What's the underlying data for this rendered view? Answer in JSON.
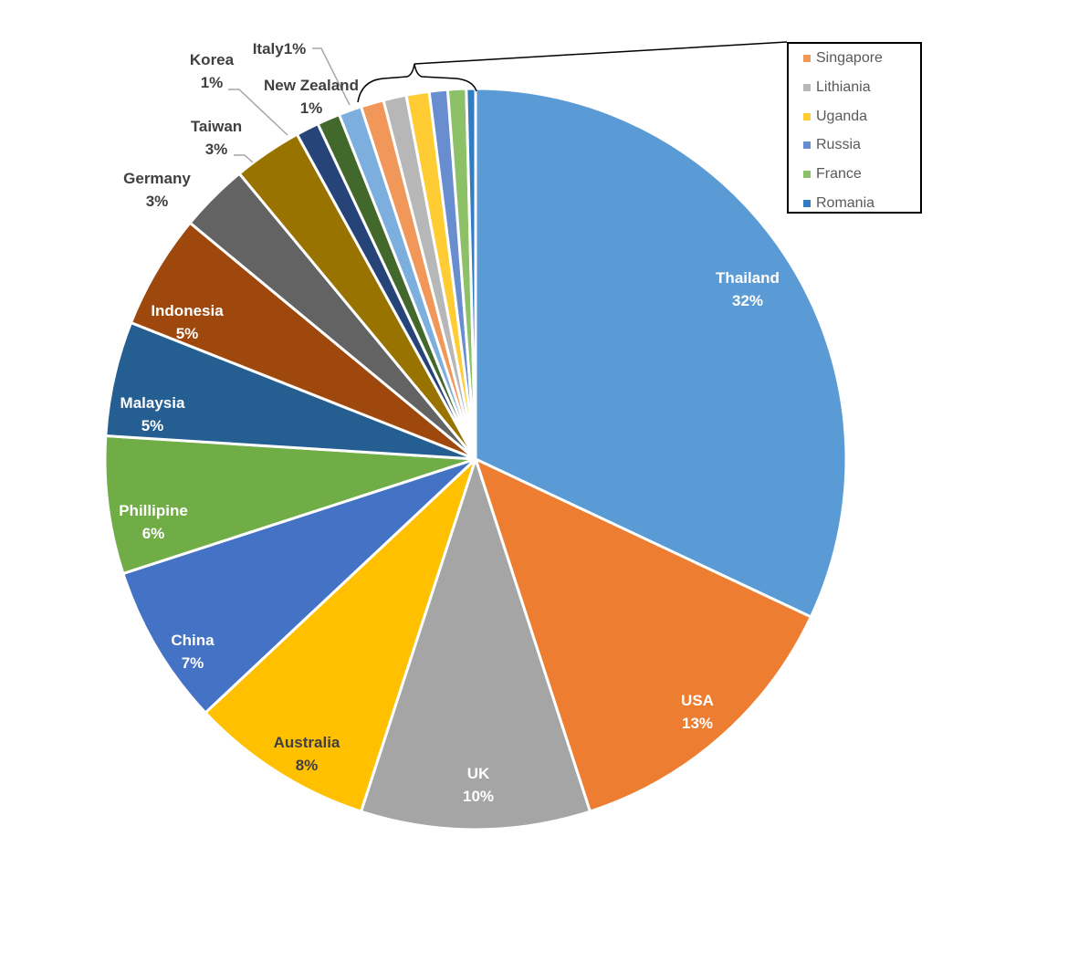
{
  "chart_data": {
    "type": "pie",
    "title": "",
    "slices": [
      {
        "label": "Thailand",
        "value": 32,
        "pct_label": "32%",
        "color": "#5B9BD5",
        "text_color": "#ffffff"
      },
      {
        "label": "USA",
        "value": 13,
        "pct_label": "13%",
        "color": "#ED7D31",
        "text_color": "#ffffff"
      },
      {
        "label": "UK",
        "value": 10,
        "pct_label": "10%",
        "color": "#A5A5A5",
        "text_color": "#ffffff"
      },
      {
        "label": "Australia",
        "value": 8,
        "pct_label": "8%",
        "color": "#FFC000",
        "text_color": "#404040"
      },
      {
        "label": "China",
        "value": 7,
        "pct_label": "7%",
        "color": "#4472C4",
        "text_color": "#ffffff"
      },
      {
        "label": "Phillipine",
        "value": 6,
        "pct_label": "6%",
        "color": "#70AD47",
        "text_color": "#ffffff"
      },
      {
        "label": "Malaysia",
        "value": 5,
        "pct_label": "5%",
        "color": "#255E91",
        "text_color": "#ffffff"
      },
      {
        "label": "Indonesia",
        "value": 5,
        "pct_label": "5%",
        "color": "#9E480E",
        "text_color": "#ffffff"
      },
      {
        "label": "Germany",
        "value": 3,
        "pct_label": "3%",
        "color": "#636363",
        "text_color": "#404040"
      },
      {
        "label": "Taiwan",
        "value": 3,
        "pct_label": "3%",
        "color": "#997300",
        "text_color": "#404040"
      },
      {
        "label": "Korea",
        "value": 1,
        "pct_label": "1%",
        "color": "#264478",
        "text_color": "#404040"
      },
      {
        "label": "New Zealand",
        "value": 1,
        "pct_label": "1%",
        "color": "#43682B",
        "text_color": "#404040"
      },
      {
        "label": "Italy",
        "value": 1,
        "pct_label": "1%",
        "color": "#7CAFDD",
        "text_color": "#404040"
      },
      {
        "label": "Singapore",
        "value": 1,
        "color": "#F1975A"
      },
      {
        "label": "Lithiania",
        "value": 1,
        "color": "#B7B7B7"
      },
      {
        "label": "Uganda",
        "value": 1,
        "color": "#FFCD33"
      },
      {
        "label": "Russia",
        "value": 0.8,
        "color": "#698ED0"
      },
      {
        "label": "France",
        "value": 0.8,
        "color": "#8CC168"
      },
      {
        "label": "Romania",
        "value": 0.4,
        "color": "#327DC2"
      }
    ],
    "legend": {
      "placement": "top-right",
      "items": [
        {
          "label": "Singapore",
          "color": "#F1975A"
        },
        {
          "label": "Lithiania",
          "color": "#B7B7B7"
        },
        {
          "label": "Uganda",
          "color": "#FFCD33"
        },
        {
          "label": "Russia",
          "color": "#698ED0"
        },
        {
          "label": "France",
          "color": "#8CC168"
        },
        {
          "label": "Romania",
          "color": "#327DC2"
        }
      ]
    }
  }
}
